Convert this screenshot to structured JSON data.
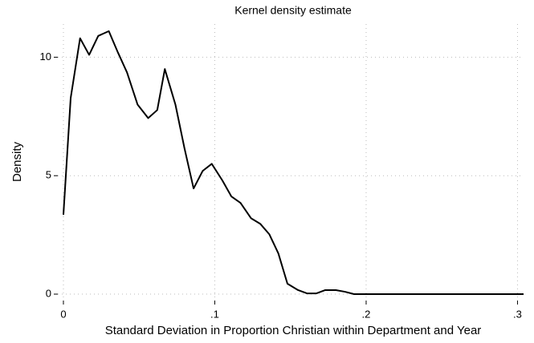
{
  "chart_data": {
    "type": "line",
    "title": "Kernel density estimate",
    "x_label": "Standard Deviation in Proportion Christian within Department and Year",
    "y_label": "Density",
    "x": [
      0,
      0.0048,
      0.011,
      0.017,
      0.023,
      0.03,
      0.036,
      0.042,
      0.049,
      0.056,
      0.062,
      0.067,
      0.074,
      0.08,
      0.086,
      0.092,
      0.098,
      0.105,
      0.111,
      0.117,
      0.124,
      0.13,
      0.136,
      0.142,
      0.148,
      0.155,
      0.161,
      0.167,
      0.173,
      0.18,
      0.186,
      0.192,
      0.2,
      0.25,
      0.3,
      0.304
    ],
    "series": [
      {
        "name": "Density",
        "color": "#000000",
        "values": [
          3.35,
          8.28,
          10.8,
          10.1,
          10.9,
          11.1,
          10.2,
          9.36,
          8.0,
          7.43,
          7.77,
          9.5,
          8.0,
          6.15,
          4.46,
          5.2,
          5.5,
          4.8,
          4.12,
          3.85,
          3.2,
          2.97,
          2.53,
          1.72,
          0.44,
          0.17,
          0.03,
          0.03,
          0.17,
          0.17,
          0.1,
          0,
          0,
          0,
          0,
          0
        ]
      }
    ],
    "xlim": [
      -0.0037,
      0.304
    ],
    "ylim": [
      -0.27,
      11.4
    ],
    "xticks": [
      0,
      {
        "value": 0.1,
        "label": ".1"
      },
      {
        "value": 0.2,
        "label": ".2"
      },
      {
        "value": 0.3,
        "label": ".3"
      }
    ],
    "yticks": [
      0,
      5,
      10
    ],
    "grid": true
  }
}
